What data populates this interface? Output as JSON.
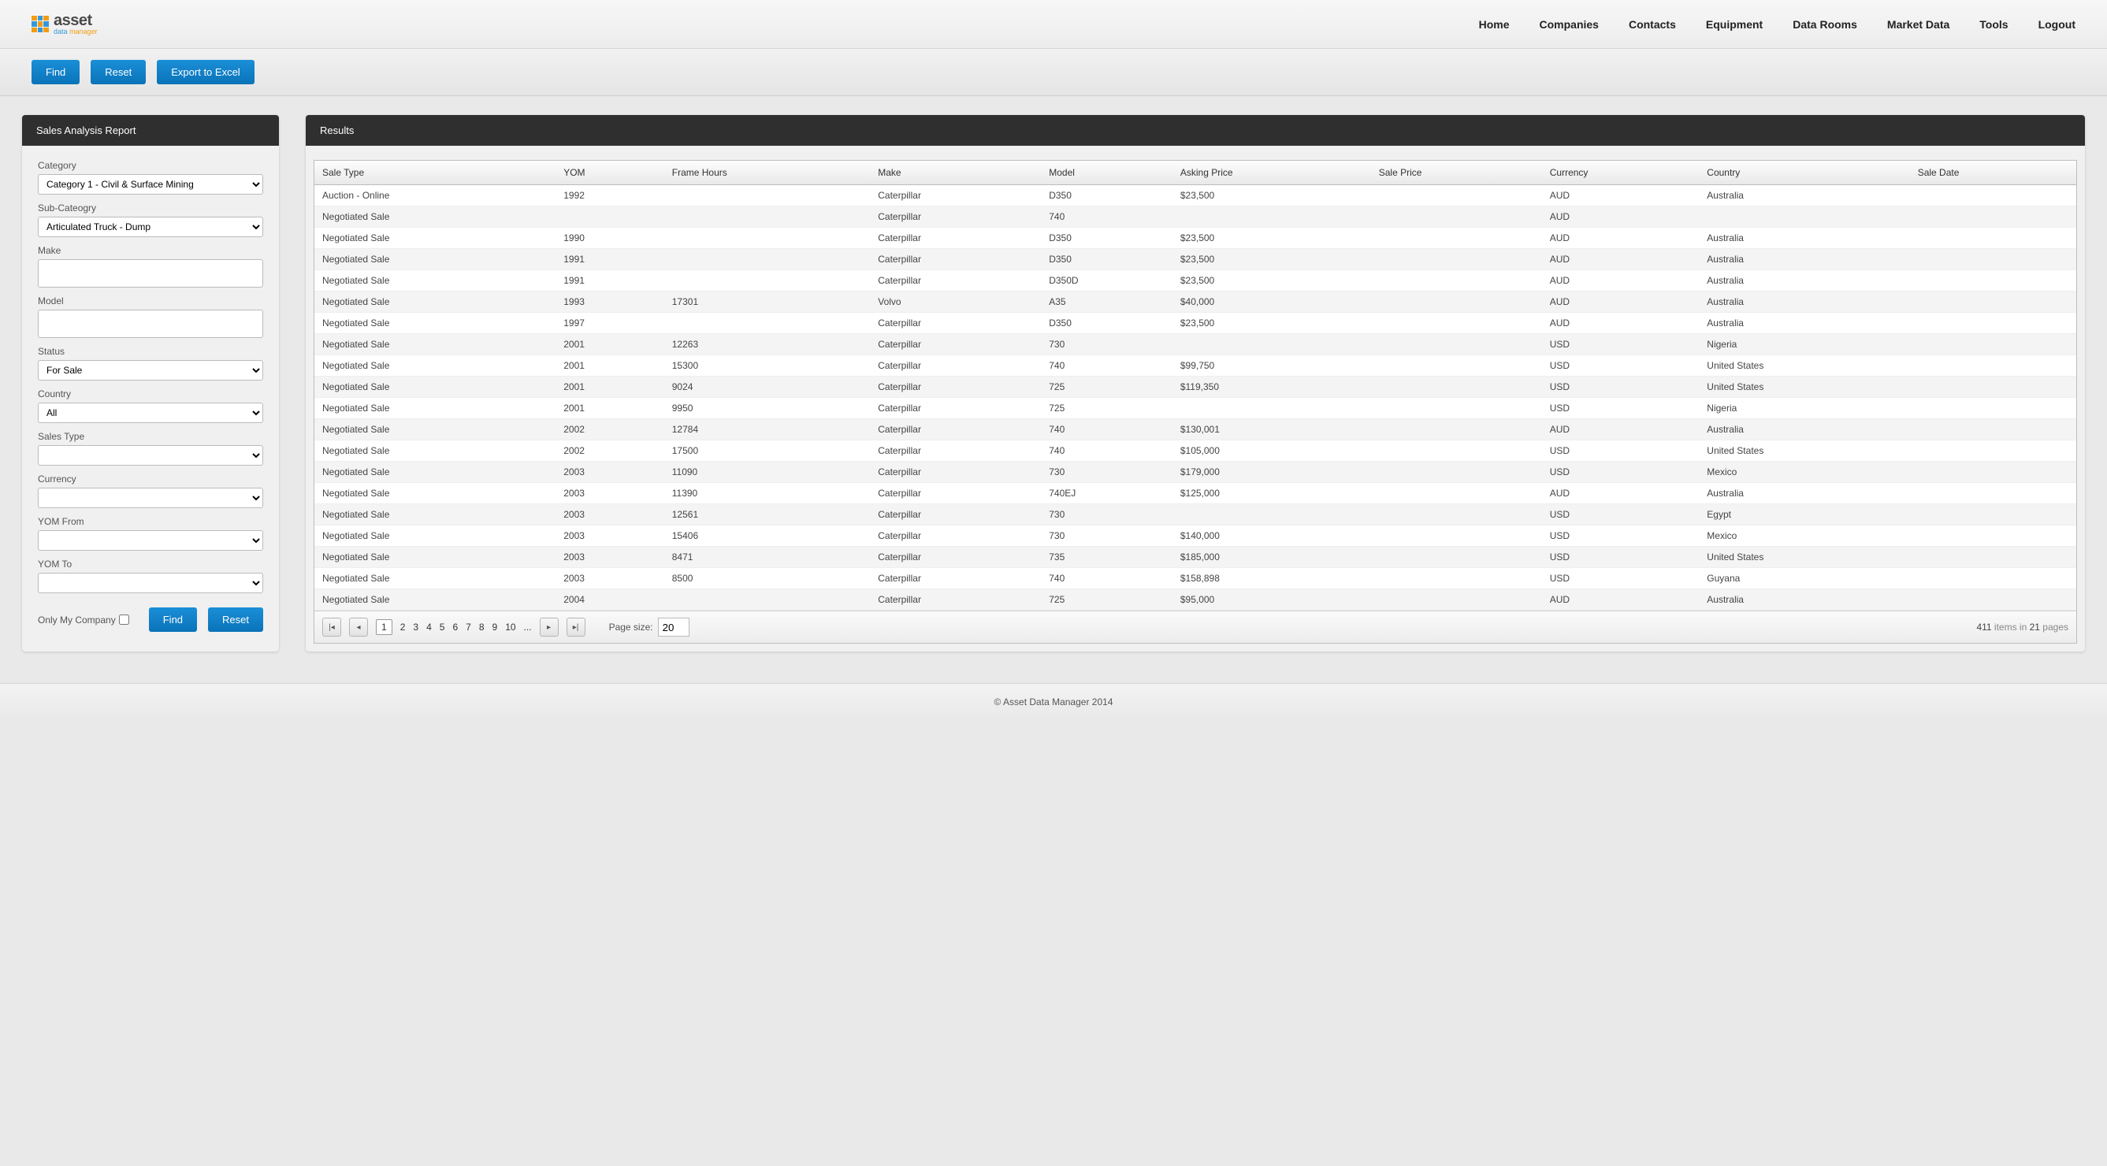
{
  "brand": {
    "name": "asset",
    "sub1": "data",
    "sub2": "manager"
  },
  "nav": [
    "Home",
    "Companies",
    "Contacts",
    "Equipment",
    "Data Rooms",
    "Market Data",
    "Tools",
    "Logout"
  ],
  "toolbar": {
    "find": "Find",
    "reset": "Reset",
    "export": "Export to Excel"
  },
  "sidebar": {
    "title": "Sales Analysis Report",
    "labels": {
      "category": "Category",
      "subcategory": "Sub-Cateogry",
      "make": "Make",
      "model": "Model",
      "status": "Status",
      "country": "Country",
      "salesType": "Sales Type",
      "currency": "Currency",
      "yomFrom": "YOM From",
      "yomTo": "YOM To",
      "onlyMyCompany": "Only My Company"
    },
    "values": {
      "category": "Category 1 - Civil & Surface Mining",
      "subcategory": "Articulated Truck - Dump",
      "make": "",
      "model": "",
      "status": "For Sale",
      "country": "All",
      "salesType": "",
      "currency": "",
      "yomFrom": "",
      "yomTo": ""
    },
    "buttons": {
      "find": "Find",
      "reset": "Reset"
    }
  },
  "results": {
    "title": "Results",
    "columns": [
      "Sale Type",
      "YOM",
      "Frame Hours",
      "Make",
      "Model",
      "Asking Price",
      "Sale Price",
      "Currency",
      "Country",
      "Sale Date"
    ],
    "rows": [
      [
        "Auction - Online",
        "1992",
        "",
        "Caterpillar",
        "D350",
        "$23,500",
        "",
        "AUD",
        "Australia",
        ""
      ],
      [
        "Negotiated Sale",
        "",
        "",
        "Caterpillar",
        "740",
        "",
        "",
        "AUD",
        "",
        ""
      ],
      [
        "Negotiated Sale",
        "1990",
        "",
        "Caterpillar",
        "D350",
        "$23,500",
        "",
        "AUD",
        "Australia",
        ""
      ],
      [
        "Negotiated Sale",
        "1991",
        "",
        "Caterpillar",
        "D350",
        "$23,500",
        "",
        "AUD",
        "Australia",
        ""
      ],
      [
        "Negotiated Sale",
        "1991",
        "",
        "Caterpillar",
        "D350D",
        "$23,500",
        "",
        "AUD",
        "Australia",
        ""
      ],
      [
        "Negotiated Sale",
        "1993",
        "17301",
        "Volvo",
        "A35",
        "$40,000",
        "",
        "AUD",
        "Australia",
        ""
      ],
      [
        "Negotiated Sale",
        "1997",
        "",
        "Caterpillar",
        "D350",
        "$23,500",
        "",
        "AUD",
        "Australia",
        ""
      ],
      [
        "Negotiated Sale",
        "2001",
        "12263",
        "Caterpillar",
        "730",
        "",
        "",
        "USD",
        "Nigeria",
        ""
      ],
      [
        "Negotiated Sale",
        "2001",
        "15300",
        "Caterpillar",
        "740",
        "$99,750",
        "",
        "USD",
        "United States",
        ""
      ],
      [
        "Negotiated Sale",
        "2001",
        "9024",
        "Caterpillar",
        "725",
        "$119,350",
        "",
        "USD",
        "United States",
        ""
      ],
      [
        "Negotiated Sale",
        "2001",
        "9950",
        "Caterpillar",
        "725",
        "",
        "",
        "USD",
        "Nigeria",
        ""
      ],
      [
        "Negotiated Sale",
        "2002",
        "12784",
        "Caterpillar",
        "740",
        "$130,001",
        "",
        "AUD",
        "Australia",
        ""
      ],
      [
        "Negotiated Sale",
        "2002",
        "17500",
        "Caterpillar",
        "740",
        "$105,000",
        "",
        "USD",
        "United States",
        ""
      ],
      [
        "Negotiated Sale",
        "2003",
        "11090",
        "Caterpillar",
        "730",
        "$179,000",
        "",
        "USD",
        "Mexico",
        ""
      ],
      [
        "Negotiated Sale",
        "2003",
        "11390",
        "Caterpillar",
        "740EJ",
        "$125,000",
        "",
        "AUD",
        "Australia",
        ""
      ],
      [
        "Negotiated Sale",
        "2003",
        "12561",
        "Caterpillar",
        "730",
        "",
        "",
        "USD",
        "Egypt",
        ""
      ],
      [
        "Negotiated Sale",
        "2003",
        "15406",
        "Caterpillar",
        "730",
        "$140,000",
        "",
        "USD",
        "Mexico",
        ""
      ],
      [
        "Negotiated Sale",
        "2003",
        "8471",
        "Caterpillar",
        "735",
        "$185,000",
        "",
        "USD",
        "United States",
        ""
      ],
      [
        "Negotiated Sale",
        "2003",
        "8500",
        "Caterpillar",
        "740",
        "$158,898",
        "",
        "USD",
        "Guyana",
        ""
      ],
      [
        "Negotiated Sale",
        "2004",
        "",
        "Caterpillar",
        "725",
        "$95,000",
        "",
        "AUD",
        "Australia",
        ""
      ]
    ],
    "pager": {
      "pages": [
        "1",
        "2",
        "3",
        "4",
        "5",
        "6",
        "7",
        "8",
        "9",
        "10",
        "..."
      ],
      "current": "1",
      "pageSizeLabel": "Page size:",
      "pageSize": "20",
      "totalItems": "411",
      "totalPages": "21",
      "summaryA": " items in ",
      "summaryB": " pages"
    }
  },
  "footer": "© Asset Data Manager 2014"
}
